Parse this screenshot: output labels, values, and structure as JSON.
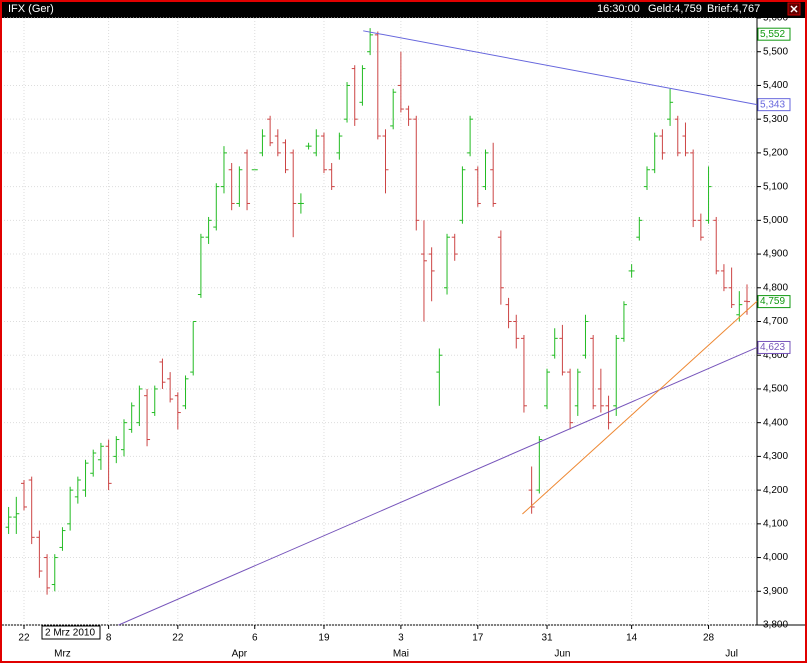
{
  "chart_data": {
    "type": "ohlc",
    "header": {
      "symbol": "IFX (Ger)",
      "time": "16:30:00",
      "bid": "Geld:4,759",
      "ask": "Brief:4,767"
    },
    "cursor_label": "2 Mrz 2010",
    "up_color": "#22bb22",
    "down_color": "#cc4444",
    "open": [
      4090,
      4120,
      4220,
      4230,
      4060,
      4000,
      3920,
      4030,
      4100,
      4180,
      4200,
      4250,
      4290,
      4330,
      4300,
      4320,
      4380,
      4400,
      4480,
      4430,
      4580,
      4530,
      4480,
      4450,
      4550,
      4780,
      4950,
      4980,
      5100,
      5150,
      5050,
      5200,
      5150,
      5200,
      5300,
      5250,
      5230,
      5200,
      5050,
      5220,
      5200,
      5250,
      5150,
      5200,
      5300,
      5450,
      5350,
      5500,
      5550,
      5250,
      5280,
      5400,
      5330,
      5300,
      4900,
      4900,
      4550,
      4800,
      4950,
      5000,
      5200,
      5150,
      5100,
      5150,
      4950,
      4750,
      4700,
      4650,
      4200,
      4200,
      4450,
      4600,
      4650,
      4550,
      4450,
      4600,
      4650,
      4500,
      4450,
      4450,
      4650,
      4850,
      4950,
      5100,
      5150,
      5250,
      5300,
      5300,
      5250,
      5200,
      5000,
      5000,
      5000,
      4850,
      4800,
      4720,
      4760
    ],
    "high": [
      4150,
      4180,
      4230,
      4240,
      4080,
      4010,
      4010,
      4090,
      4210,
      4240,
      4290,
      4320,
      4340,
      4350,
      4360,
      4410,
      4460,
      4510,
      4500,
      4510,
      4590,
      4550,
      4490,
      4540,
      4700,
      4960,
      5010,
      5110,
      5220,
      5170,
      5160,
      5210,
      5150,
      5270,
      5310,
      5270,
      5240,
      5210,
      5080,
      5230,
      5270,
      5260,
      5170,
      5260,
      5410,
      5460,
      5460,
      5570,
      5560,
      5270,
      5390,
      5500,
      5340,
      5310,
      5000,
      4920,
      4620,
      4960,
      4960,
      5160,
      5310,
      5160,
      5210,
      5230,
      4970,
      4770,
      4720,
      4660,
      4270,
      4360,
      4560,
      4680,
      4690,
      4560,
      4560,
      4720,
      4660,
      4560,
      4480,
      4660,
      4760,
      4870,
      5010,
      5160,
      5260,
      5270,
      5390,
      5310,
      5290,
      5210,
      5020,
      5160,
      5010,
      4870,
      4860,
      4790,
      4810
    ],
    "low": [
      4070,
      4070,
      4140,
      4040,
      3940,
      3890,
      3900,
      4020,
      4080,
      4160,
      4180,
      4240,
      4260,
      4200,
      4280,
      4300,
      4370,
      4390,
      4330,
      4420,
      4500,
      4460,
      4380,
      4440,
      4540,
      4770,
      4930,
      4970,
      5080,
      5030,
      5040,
      5030,
      5150,
      5190,
      5220,
      5190,
      5140,
      4950,
      5020,
      5210,
      5190,
      5140,
      5090,
      5180,
      5290,
      5280,
      5340,
      5490,
      5240,
      5080,
      5270,
      5320,
      5280,
      4970,
      4700,
      4760,
      4450,
      4780,
      4880,
      4990,
      5190,
      5040,
      5090,
      5040,
      4750,
      4680,
      4620,
      4430,
      4130,
      4190,
      4440,
      4590,
      4540,
      4380,
      4420,
      4590,
      4440,
      4430,
      4380,
      4420,
      4640,
      4830,
      4940,
      5090,
      5140,
      5180,
      5280,
      5190,
      5190,
      4980,
      4940,
      4990,
      4840,
      4790,
      4740,
      4700,
      4720
    ],
    "close": [
      4120,
      4130,
      4150,
      4060,
      3960,
      3910,
      4000,
      4080,
      4200,
      4230,
      4280,
      4310,
      4330,
      4220,
      4350,
      4400,
      4450,
      4500,
      4350,
      4500,
      4520,
      4470,
      4430,
      4530,
      4700,
      4950,
      5000,
      5100,
      5200,
      5050,
      5150,
      5050,
      5150,
      5250,
      5230,
      5200,
      5150,
      5050,
      5050,
      5220,
      5250,
      5150,
      5100,
      5250,
      5400,
      5300,
      5450,
      5550,
      5250,
      5150,
      5380,
      5330,
      5300,
      5000,
      4880,
      4850,
      4600,
      4950,
      4900,
      5150,
      5300,
      5050,
      5200,
      5050,
      4800,
      4700,
      4650,
      4450,
      4150,
      4350,
      4550,
      4650,
      4550,
      4400,
      4550,
      4700,
      4450,
      4450,
      4400,
      4650,
      4750,
      4850,
      5000,
      5150,
      5250,
      5200,
      5350,
      5200,
      5200,
      5000,
      4950,
      5100,
      4850,
      4800,
      4750,
      4750,
      4759
    ],
    "xlim": [
      -0.6,
      97.3
    ],
    "xticks": [
      {
        "value": 2,
        "label": "22"
      },
      {
        "value": 13,
        "label": "8"
      },
      {
        "value": 22,
        "label": "22"
      },
      {
        "value": 32,
        "label": "6"
      },
      {
        "value": 41,
        "label": "19"
      },
      {
        "value": 51,
        "label": "3"
      },
      {
        "value": 61,
        "label": "17"
      },
      {
        "value": 70,
        "label": "31"
      },
      {
        "value": 81,
        "label": "14"
      },
      {
        "value": 91,
        "label": "28"
      }
    ],
    "month_ticks": [
      {
        "value": 7,
        "label": "Mrz"
      },
      {
        "value": 30,
        "label": "Apr"
      },
      {
        "value": 51,
        "label": "Mai"
      },
      {
        "value": 72,
        "label": "Jun"
      },
      {
        "value": 94,
        "label": "Jul"
      }
    ],
    "ylim": [
      3800,
      5600
    ],
    "yticks": [
      {
        "value": 3800,
        "label": "3,800"
      },
      {
        "value": 3900,
        "label": "3,900"
      },
      {
        "value": 4000,
        "label": "4,000"
      },
      {
        "value": 4100,
        "label": "4,100"
      },
      {
        "value": 4200,
        "label": "4,200"
      },
      {
        "value": 4300,
        "label": "4,300"
      },
      {
        "value": 4400,
        "label": "4,400"
      },
      {
        "value": 4500,
        "label": "4,500"
      },
      {
        "value": 4600,
        "label": "4,600"
      },
      {
        "value": 4700,
        "label": "4,700"
      },
      {
        "value": 4800,
        "label": "4,800"
      },
      {
        "value": 4900,
        "label": "4,900"
      },
      {
        "value": 5000,
        "label": "5,000"
      },
      {
        "value": 5100,
        "label": "5,100"
      },
      {
        "value": 5200,
        "label": "5,200"
      },
      {
        "value": 5300,
        "label": "5,300"
      },
      {
        "value": 5400,
        "label": "5,400"
      },
      {
        "value": 5500,
        "label": "5,500"
      },
      {
        "value": 5600,
        "label": "5,600"
      }
    ],
    "grid": true,
    "trendlines": [
      {
        "color": "#6666dd",
        "x": [
          46.1,
          97.3
        ],
        "y": [
          5562,
          {
            "value": 5343,
            "label": "5,343"
          }
        ]
      },
      {
        "color": "#7755bb",
        "x": [
          14.3,
          97.3
        ],
        "y": [
          3800,
          {
            "value": 4623,
            "label": "4,623"
          }
        ]
      },
      {
        "color": "#ee8833",
        "x": [
          66.8,
          97.3
        ],
        "y": [
          4129,
          4760
        ]
      }
    ],
    "markers": [
      {
        "value": 5552,
        "label": "5,552",
        "color": "#119911"
      },
      {
        "value": 4759,
        "label": "4,759",
        "color": "#119911"
      }
    ]
  }
}
